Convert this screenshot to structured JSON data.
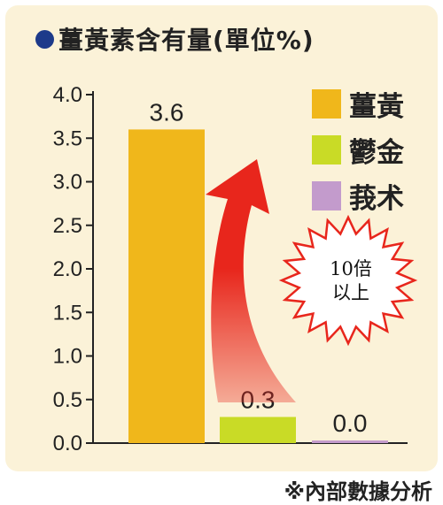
{
  "title": "薑黃素含有量(單位%)",
  "footnote": "※內部數據分析",
  "callout": {
    "line1": "10倍",
    "line2": "以上"
  },
  "colors": {
    "turmeric": "#f0b71b",
    "ukon": "#c9db26",
    "zedoary": "#c39bcc",
    "arrow": "#e8261c",
    "title_dot": "#1d3a8a",
    "background": "#fbf2d8"
  },
  "chart_data": {
    "type": "bar",
    "title": "薑黃素含有量(單位%)",
    "categories": [
      "薑黃",
      "鬱金",
      "莪术"
    ],
    "values": [
      3.6,
      0.3,
      0.03
    ],
    "data_labels": [
      "3.6",
      "0.3",
      "0.0"
    ],
    "yticks": [
      "0.0",
      "0.5",
      "1.0",
      "1.5",
      "2.0",
      "2.5",
      "3.0",
      "3.5",
      "4.0"
    ],
    "ylim": [
      0,
      4
    ],
    "grid": false,
    "legend": {
      "placement": "top-right",
      "entries": [
        {
          "label": "薑黃",
          "color": "#f0b71b"
        },
        {
          "label": "鬱金",
          "color": "#c9db26"
        },
        {
          "label": "莪术",
          "color": "#c39bcc"
        }
      ]
    }
  }
}
